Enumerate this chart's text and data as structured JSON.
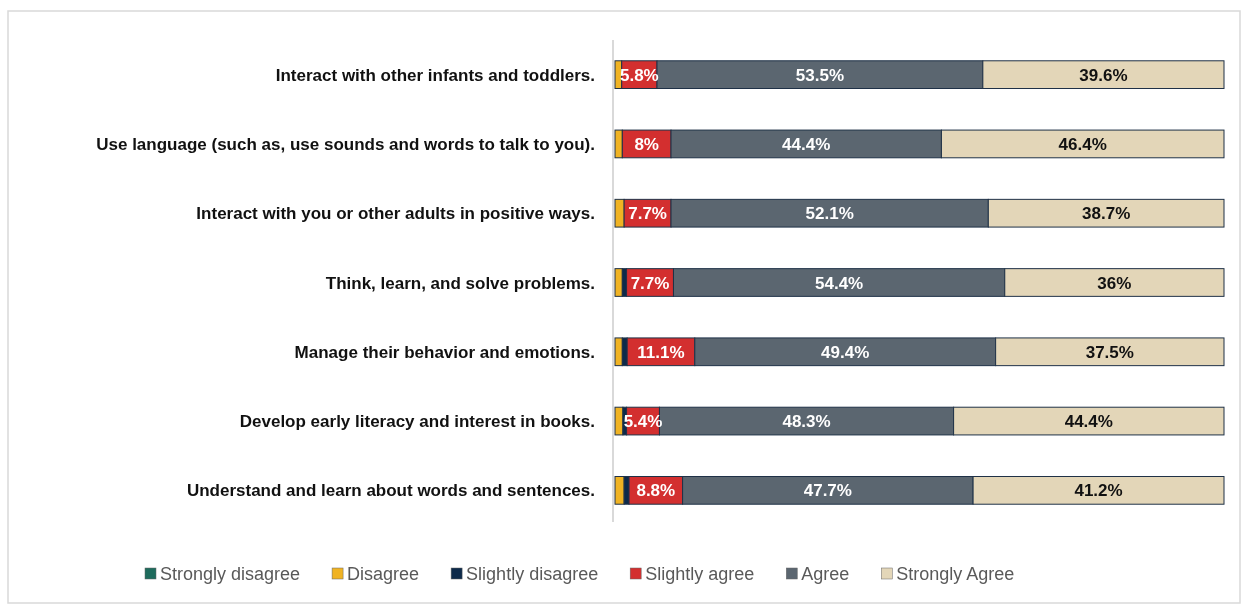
{
  "chart_data": {
    "type": "bar",
    "orientation": "horizontal",
    "stacked": true,
    "categories": [
      "Interact with other infants and toddlers.",
      "Use language (such as, use sounds and words to talk to you).",
      "Interact with you or other adults in positive ways.",
      "Think, learn, and solve problems.",
      "Manage their behavior and emotions.",
      "Develop early literacy and interest in books.",
      "Understand and learn about words and sentences."
    ],
    "series": [
      {
        "name": "Strongly disagree",
        "color": "#1e6b5c",
        "values": [
          0,
          0,
          0,
          0,
          0,
          0,
          0
        ]
      },
      {
        "name": "Disagree",
        "color": "#f0b323",
        "values": [
          1.1,
          1.2,
          1.5,
          1.2,
          1.2,
          1.3,
          1.5
        ]
      },
      {
        "name": "Slightly disagree",
        "color": "#0d2a4a",
        "values": [
          0,
          0,
          0,
          0.7,
          0.8,
          0.6,
          0.8
        ]
      },
      {
        "name": "Slightly agree",
        "color": "#d32f2f",
        "values": [
          5.8,
          8,
          7.7,
          7.7,
          11.1,
          5.4,
          8.8
        ],
        "value_labels": [
          "5.8%",
          "8%",
          "7.7%",
          "7.7%",
          "11.1%",
          "5.4%",
          "8.8%"
        ]
      },
      {
        "name": "Agree",
        "color": "#5b6670",
        "values": [
          53.5,
          44.4,
          52.1,
          54.4,
          49.4,
          48.3,
          47.7
        ],
        "value_labels": [
          "53.5%",
          "44.4%",
          "52.1%",
          "54.4%",
          "49.4%",
          "48.3%",
          "47.7%"
        ]
      },
      {
        "name": "Strongly Agree",
        "color": "#e3d6b8",
        "values": [
          39.6,
          46.4,
          38.7,
          36,
          37.5,
          44.4,
          41.2
        ],
        "value_labels": [
          "39.6%",
          "46.4%",
          "38.7%",
          "36%",
          "37.5%",
          "44.4%",
          "41.2%"
        ]
      }
    ],
    "xlim": [
      0,
      100
    ],
    "tick_labels": "y",
    "legend": "bottom"
  }
}
